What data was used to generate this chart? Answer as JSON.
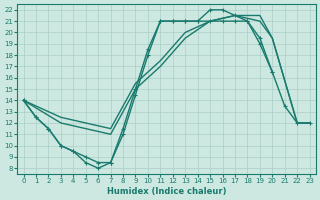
{
  "xlabel": "Humidex (Indice chaleur)",
  "xlim": [
    -0.5,
    23.5
  ],
  "ylim": [
    7.5,
    22.5
  ],
  "yticks": [
    8,
    9,
    10,
    11,
    12,
    13,
    14,
    15,
    16,
    17,
    18,
    19,
    20,
    21,
    22
  ],
  "xticks": [
    0,
    1,
    2,
    3,
    4,
    5,
    6,
    7,
    8,
    9,
    10,
    11,
    12,
    13,
    14,
    15,
    16,
    17,
    18,
    19,
    20,
    21,
    22,
    23
  ],
  "bg_color": "#cce8e0",
  "line_color": "#1a7a6e",
  "grid_color": "#aacfc8",
  "line_width": 1.0,
  "marker_size": 3.5,
  "s1x": [
    0,
    1,
    2,
    3,
    4,
    5,
    6,
    7,
    8,
    9,
    10,
    11,
    12,
    13,
    14,
    15,
    16,
    17,
    18,
    19,
    20
  ],
  "s1y": [
    14,
    12.5,
    11.5,
    10,
    9.5,
    9,
    8.5,
    8.5,
    11.5,
    15,
    18.5,
    21,
    21,
    21,
    21,
    22,
    22,
    21.5,
    21,
    19.5,
    16.5
  ],
  "s2x": [
    0,
    1,
    2,
    3,
    4,
    5,
    6,
    7,
    8,
    9,
    10,
    11,
    12,
    13,
    14,
    15,
    16,
    17,
    18,
    19,
    20,
    21,
    22,
    23
  ],
  "s2y": [
    14,
    12.5,
    11.5,
    10,
    9.5,
    8.5,
    8,
    8.5,
    11,
    14.5,
    18,
    21,
    21,
    21,
    21,
    21,
    21,
    21,
    21,
    19,
    16.5,
    13.5,
    12,
    12
  ],
  "s3x": [
    0,
    3,
    7,
    9,
    11,
    13,
    15,
    17,
    19,
    20,
    22,
    23
  ],
  "s3y": [
    14,
    12,
    11,
    15,
    17,
    19.5,
    21,
    21.5,
    21,
    19.5,
    12,
    12
  ],
  "s4x": [
    0,
    3,
    7,
    9,
    11,
    13,
    15,
    17,
    19,
    20,
    22,
    23
  ],
  "s4y": [
    14,
    12.5,
    11.5,
    15.5,
    17.5,
    20,
    21,
    21.5,
    21.5,
    19.5,
    12,
    12
  ]
}
